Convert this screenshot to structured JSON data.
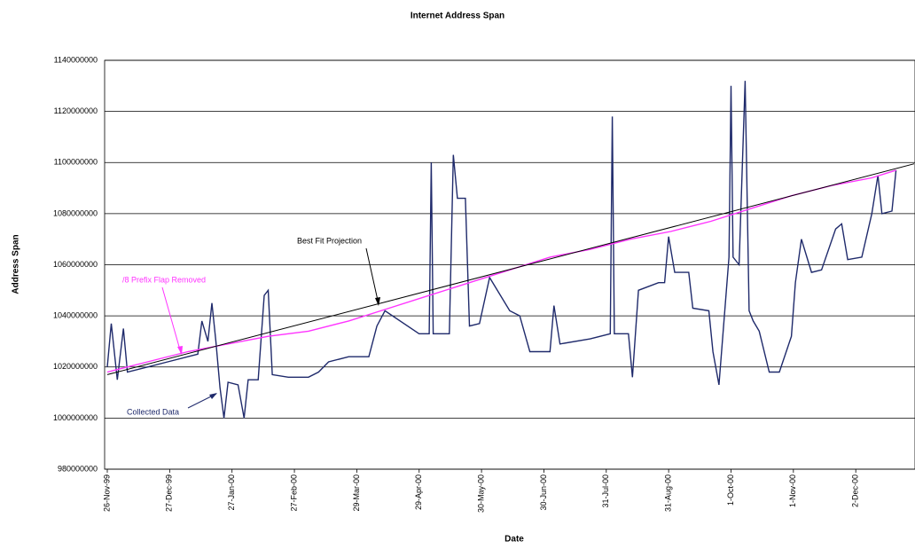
{
  "chart_data": {
    "type": "line",
    "title": "Internet Address Span",
    "x_label": "Date",
    "y_label": "Address Span",
    "xlim": [
      "1999-11-26",
      "2000-12-31"
    ],
    "xticks": [
      {
        "value": "1999-11-26",
        "label": "26-Nov-99"
      },
      {
        "value": "1999-12-27",
        "label": "27-Dec-99"
      },
      {
        "value": "2000-01-27",
        "label": "27-Jan-00"
      },
      {
        "value": "2000-02-27",
        "label": "27-Feb-00"
      },
      {
        "value": "2000-03-29",
        "label": "29-Mar-00"
      },
      {
        "value": "2000-04-29",
        "label": "29-Apr-00"
      },
      {
        "value": "2000-05-30",
        "label": "30-May-00"
      },
      {
        "value": "2000-06-30",
        "label": "30-Jun-00"
      },
      {
        "value": "2000-07-31",
        "label": "31-Jul-00"
      },
      {
        "value": "2000-08-31",
        "label": "31-Aug-00"
      },
      {
        "value": "2000-10-01",
        "label": "1-Oct-00"
      },
      {
        "value": "2000-11-01",
        "label": "1-Nov-00"
      },
      {
        "value": "2000-12-02",
        "label": "2-Dec-00"
      }
    ],
    "ylim": [
      980000000,
      1140000000
    ],
    "yticks": [
      980000000,
      1000000000,
      1020000000,
      1040000000,
      1060000000,
      1080000000,
      1100000000,
      1120000000,
      1140000000
    ],
    "grid": true,
    "series": [
      {
        "name": "Collected Data",
        "color": "#1f2a6b",
        "x": [
          "1999-11-26",
          "1999-11-28",
          "1999-12-01",
          "1999-12-04",
          "1999-12-06",
          "1999-12-16",
          "1999-12-26",
          "2000-01-05",
          "2000-01-10",
          "2000-01-12",
          "2000-01-15",
          "2000-01-17",
          "2000-01-19",
          "2000-01-21",
          "2000-01-23",
          "2000-01-25",
          "2000-01-30",
          "2000-02-02",
          "2000-02-04",
          "2000-02-09",
          "2000-02-12",
          "2000-02-14",
          "2000-02-16",
          "2000-02-24",
          "2000-03-05",
          "2000-03-10",
          "2000-03-15",
          "2000-03-25",
          "2000-04-04",
          "2000-04-08",
          "2000-04-12",
          "2000-04-29",
          "2000-05-04",
          "2000-05-05",
          "2000-05-06",
          "2000-05-14",
          "2000-05-16",
          "2000-05-18",
          "2000-05-22",
          "2000-05-24",
          "2000-05-29",
          "2000-06-03",
          "2000-06-13",
          "2000-06-18",
          "2000-06-23",
          "2000-07-03",
          "2000-07-05",
          "2000-07-08",
          "2000-07-23",
          "2000-08-02",
          "2000-08-03",
          "2000-08-04",
          "2000-08-11",
          "2000-08-13",
          "2000-08-16",
          "2000-08-26",
          "2000-08-29",
          "2000-08-31",
          "2000-09-03",
          "2000-09-10",
          "2000-09-12",
          "2000-09-20",
          "2000-09-22",
          "2000-09-25",
          "2000-09-30",
          "2000-10-01",
          "2000-10-02",
          "2000-10-05",
          "2000-10-08",
          "2000-10-10",
          "2000-10-12",
          "2000-10-15",
          "2000-10-20",
          "2000-10-25",
          "2000-10-31",
          "2000-11-02",
          "2000-11-05",
          "2000-11-10",
          "2000-11-15",
          "2000-11-22",
          "2000-11-25",
          "2000-11-28",
          "2000-12-05",
          "2000-12-10",
          "2000-12-13",
          "2000-12-15",
          "2000-12-20",
          "2000-12-22"
        ],
        "values": [
          1020000000,
          1037000000,
          1015000000,
          1035000000,
          1018000000,
          1020000000,
          1022000000,
          1024000000,
          1025000000,
          1038000000,
          1030000000,
          1045000000,
          1030000000,
          1012000000,
          1000000000,
          1014000000,
          1013000000,
          1000000000,
          1015000000,
          1015000000,
          1048000000,
          1050000000,
          1017000000,
          1016000000,
          1016000000,
          1018000000,
          1022000000,
          1024000000,
          1024000000,
          1036000000,
          1042000000,
          1033000000,
          1033000000,
          1100000000,
          1033000000,
          1033000000,
          1103000000,
          1086000000,
          1086000000,
          1036000000,
          1037000000,
          1055000000,
          1042000000,
          1040000000,
          1026000000,
          1026000000,
          1044000000,
          1029000000,
          1031000000,
          1033000000,
          1118000000,
          1033000000,
          1033000000,
          1016000000,
          1050000000,
          1053000000,
          1053000000,
          1071000000,
          1057000000,
          1057000000,
          1043000000,
          1042000000,
          1026000000,
          1013000000,
          1063000000,
          1130000000,
          1063000000,
          1060000000,
          1132000000,
          1042000000,
          1038000000,
          1034000000,
          1018000000,
          1018000000,
          1032000000,
          1053000000,
          1070000000,
          1057000000,
          1058000000,
          1074000000,
          1076000000,
          1062000000,
          1063000000,
          1080000000,
          1095000000,
          1080000000,
          1081000000,
          1097000000
        ]
      },
      {
        "name": "/8 Prefix Flap Removed",
        "color": "#ff33ff",
        "x": [
          "1999-11-26",
          "1999-12-16",
          "2000-01-05",
          "2000-01-25",
          "2000-02-14",
          "2000-03-05",
          "2000-03-25",
          "2000-04-14",
          "2000-05-04",
          "2000-05-24",
          "2000-06-13",
          "2000-07-03",
          "2000-07-23",
          "2000-08-12",
          "2000-09-01",
          "2000-09-21",
          "2000-10-11",
          "2000-10-31",
          "2000-11-20",
          "2000-12-10",
          "2000-12-22"
        ],
        "values": [
          1018000000,
          1022000000,
          1026000000,
          1029000000,
          1032000000,
          1034000000,
          1038000000,
          1043000000,
          1048000000,
          1053000000,
          1058000000,
          1063000000,
          1066000000,
          1070000000,
          1073000000,
          1077000000,
          1082000000,
          1087000000,
          1091000000,
          1094000000,
          1097000000
        ]
      },
      {
        "name": "Best Fit Projection",
        "color": "#000000",
        "x": [
          "1999-11-26",
          "2000-12-31"
        ],
        "values": [
          1017000000,
          1099500000
        ]
      }
    ]
  }
}
